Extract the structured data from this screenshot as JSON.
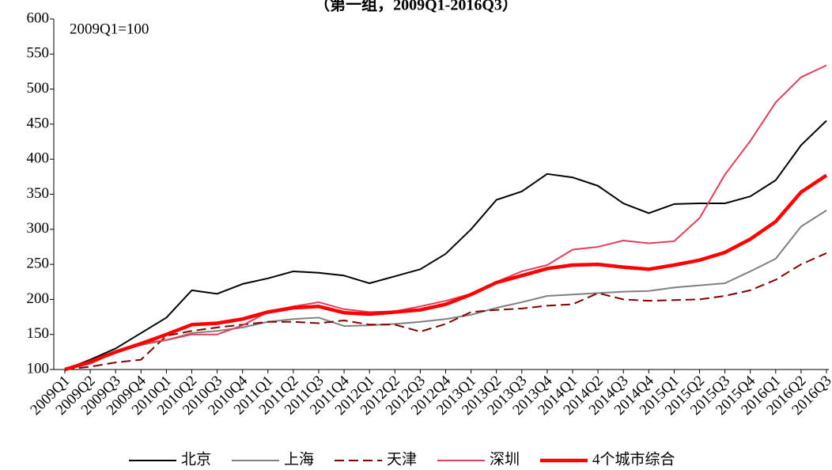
{
  "chart_data": {
    "type": "line",
    "title": "（第一组，2009Q1-2016Q3）",
    "annotation": "2009Q1=100",
    "categories": [
      "2009Q1",
      "2009Q2",
      "2009Q3",
      "2009Q4",
      "2010Q1",
      "2010Q2",
      "2010Q3",
      "2010Q4",
      "2011Q1",
      "2011Q2",
      "2011Q3",
      "2011Q4",
      "2012Q1",
      "2012Q2",
      "2012Q3",
      "2012Q4",
      "2013Q1",
      "2013Q2",
      "2013Q3",
      "2013Q4",
      "2014Q1",
      "2014Q2",
      "2014Q3",
      "2014Q4",
      "2015Q1",
      "2015Q2",
      "2015Q3",
      "2015Q4",
      "2016Q1",
      "2016Q2",
      "2016Q3"
    ],
    "series": [
      {
        "name": "北京",
        "color": "#000000",
        "values": [
          100,
          114,
          130,
          152,
          174,
          213,
          208,
          222,
          230,
          240,
          238,
          234,
          223,
          233,
          243,
          265,
          300,
          342,
          354,
          379,
          374,
          362,
          337,
          323,
          336,
          337,
          337,
          347,
          370,
          420,
          455
        ]
      },
      {
        "name": "上海",
        "color": "#808080",
        "values": [
          100,
          108,
          125,
          135,
          142,
          152,
          155,
          160,
          168,
          172,
          174,
          162,
          163,
          165,
          168,
          172,
          178,
          188,
          196,
          205,
          207,
          209,
          211,
          212,
          217,
          220,
          223,
          240,
          258,
          304,
          327
        ]
      },
      {
        "name": "天津",
        "color": "#800000",
        "dashed": true,
        "values": [
          100,
          104,
          110,
          114,
          148,
          155,
          160,
          164,
          168,
          168,
          166,
          170,
          164,
          164,
          154,
          165,
          182,
          185,
          187,
          191,
          193,
          209,
          200,
          198,
          199,
          200,
          205,
          213,
          228,
          250,
          266
        ]
      },
      {
        "name": "深圳",
        "color": "#e0405a",
        "values": [
          100,
          112,
          126,
          137,
          142,
          150,
          150,
          163,
          182,
          190,
          196,
          186,
          182,
          183,
          190,
          198,
          208,
          225,
          240,
          249,
          271,
          275,
          284,
          280,
          283,
          316,
          378,
          426,
          481,
          517,
          534
        ]
      },
      {
        "name": "4个城市综合",
        "color": "#ff0000",
        "thick": true,
        "values": [
          100,
          111,
          125,
          137,
          150,
          164,
          166,
          172,
          182,
          188,
          190,
          181,
          179,
          182,
          185,
          193,
          207,
          224,
          234,
          244,
          249,
          250,
          246,
          243,
          249,
          256,
          267,
          286,
          311,
          353,
          377
        ]
      }
    ],
    "ylim": [
      100,
      600
    ],
    "yticks": [
      100,
      150,
      200,
      250,
      300,
      350,
      400,
      450,
      500,
      550,
      600
    ],
    "legend": "bottom"
  }
}
